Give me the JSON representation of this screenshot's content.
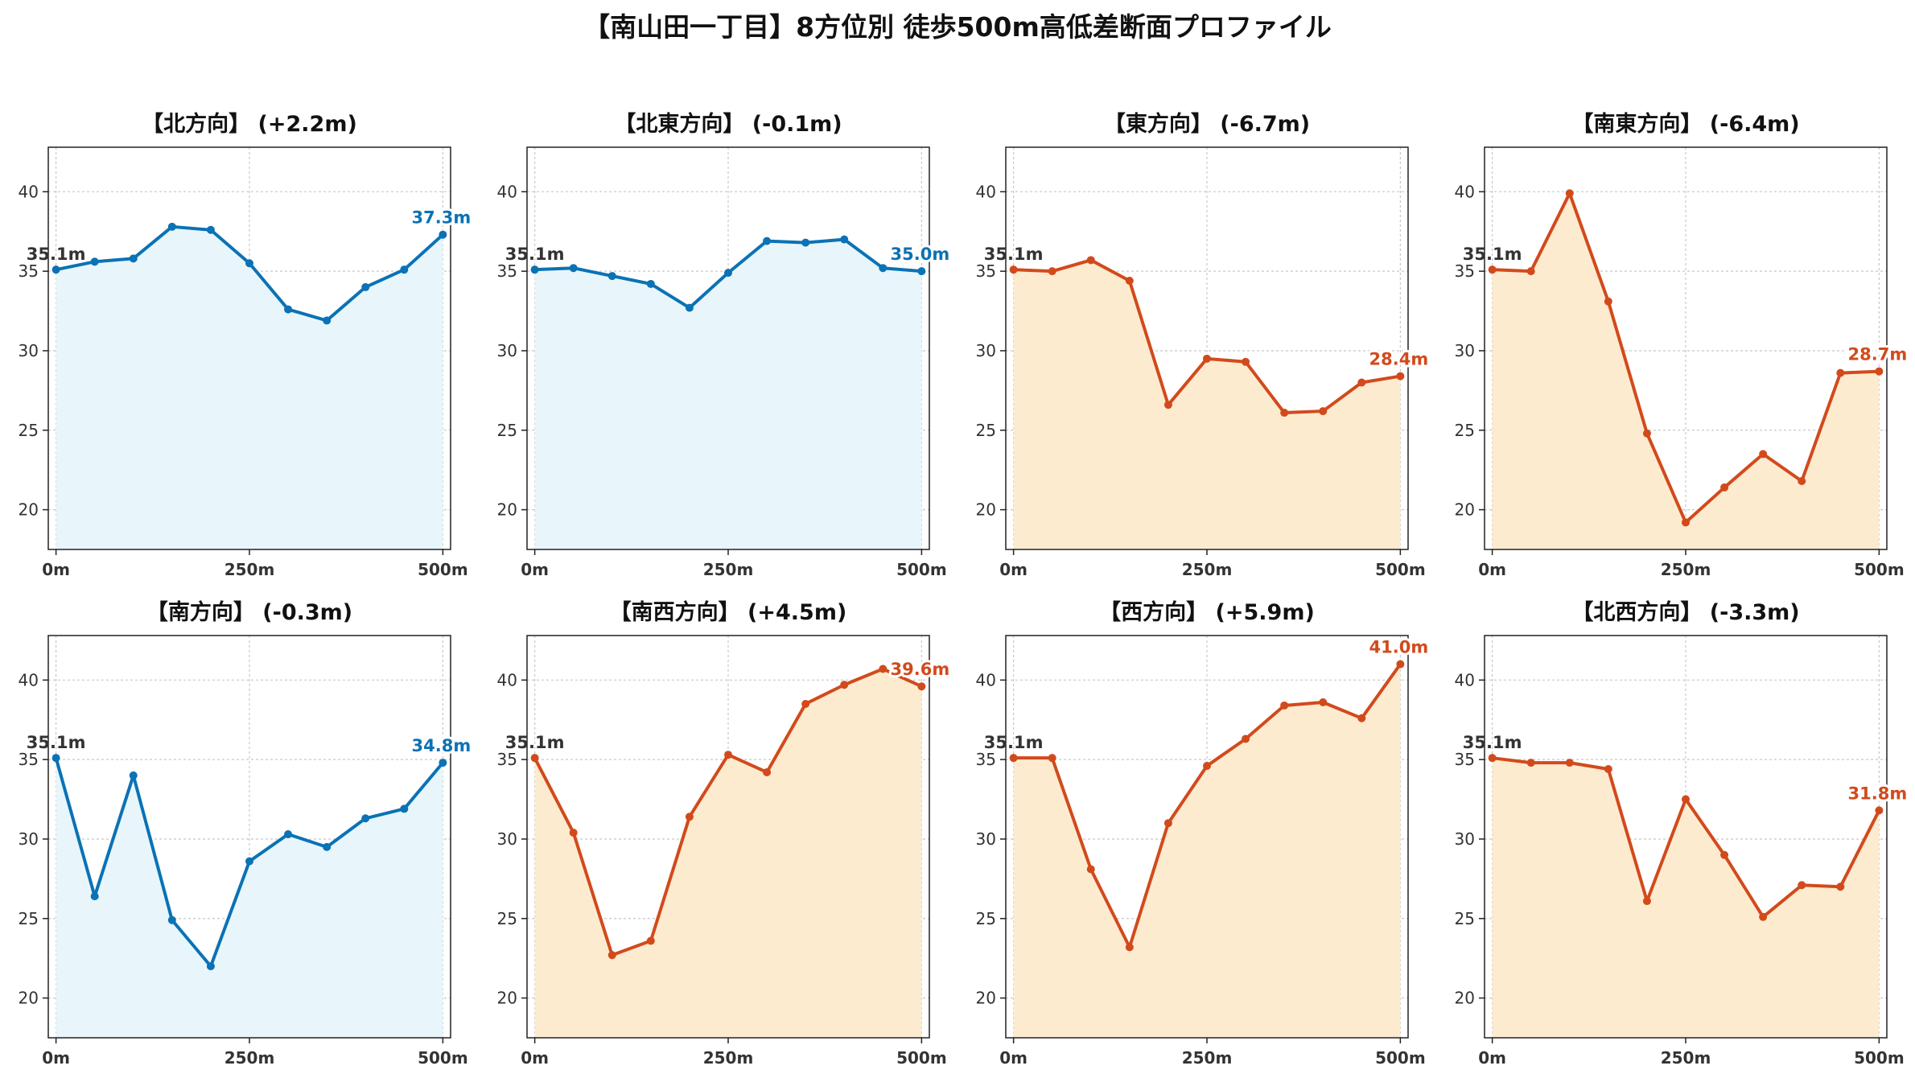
{
  "title": "【南山田一丁目】8方位別 徒歩500m高低差断面プロファイル",
  "colors": {
    "up": "#1f77b4",
    "up_line": "#0b72b5",
    "up_fill": "#e8f6fb",
    "down_line": "#d24a1c",
    "down_fill": "#fdebd0",
    "start_label": "#333333"
  },
  "chart_data": [
    {
      "type": "area",
      "title": "【北方向】 (+2.2m)",
      "trend": "up",
      "x": [
        0,
        50,
        100,
        150,
        200,
        250,
        300,
        350,
        400,
        450,
        500
      ],
      "y": [
        35.1,
        35.6,
        35.8,
        37.8,
        37.6,
        35.5,
        32.6,
        31.9,
        34.0,
        35.1,
        37.3
      ],
      "start_label": "35.1m",
      "end_label": "37.3m",
      "xticks": [
        "0m",
        "250m",
        "500m"
      ],
      "yticks": [
        "20",
        "25",
        "30",
        "35",
        "40"
      ],
      "ylim": [
        17.5,
        42.8
      ],
      "xlim": [
        -10,
        510
      ],
      "grid": true
    },
    {
      "type": "area",
      "title": "【北東方向】 (-0.1m)",
      "trend": "up",
      "x": [
        0,
        50,
        100,
        150,
        200,
        250,
        300,
        350,
        400,
        450,
        500
      ],
      "y": [
        35.1,
        35.2,
        34.7,
        34.2,
        32.7,
        34.9,
        36.9,
        36.8,
        37.0,
        35.2,
        35.0
      ],
      "start_label": "35.1m",
      "end_label": "35.0m",
      "xticks": [
        "0m",
        "250m",
        "500m"
      ],
      "yticks": [
        "20",
        "25",
        "30",
        "35",
        "40"
      ],
      "ylim": [
        17.5,
        42.8
      ],
      "xlim": [
        -10,
        510
      ],
      "grid": true
    },
    {
      "type": "area",
      "title": "【東方向】 (-6.7m)",
      "trend": "down",
      "x": [
        0,
        50,
        100,
        150,
        200,
        250,
        300,
        350,
        400,
        450,
        500
      ],
      "y": [
        35.1,
        35.0,
        35.7,
        34.4,
        26.6,
        29.5,
        29.3,
        26.1,
        26.2,
        28.0,
        28.4
      ],
      "start_label": "35.1m",
      "end_label": "28.4m",
      "xticks": [
        "0m",
        "250m",
        "500m"
      ],
      "yticks": [
        "20",
        "25",
        "30",
        "35",
        "40"
      ],
      "ylim": [
        17.5,
        42.8
      ],
      "xlim": [
        -10,
        510
      ],
      "grid": true
    },
    {
      "type": "area",
      "title": "【南東方向】 (-6.4m)",
      "trend": "down",
      "x": [
        0,
        50,
        100,
        150,
        200,
        250,
        300,
        350,
        400,
        450,
        500
      ],
      "y": [
        35.1,
        35.0,
        39.9,
        33.1,
        24.8,
        19.2,
        21.4,
        23.5,
        21.8,
        28.6,
        28.7
      ],
      "start_label": "35.1m",
      "end_label": "28.7m",
      "xticks": [
        "0m",
        "250m",
        "500m"
      ],
      "yticks": [
        "20",
        "25",
        "30",
        "35",
        "40"
      ],
      "ylim": [
        17.5,
        42.8
      ],
      "xlim": [
        -10,
        510
      ],
      "grid": true
    },
    {
      "type": "area",
      "title": "【南方向】 (-0.3m)",
      "trend": "up",
      "x": [
        0,
        50,
        100,
        150,
        200,
        250,
        300,
        350,
        400,
        450,
        500
      ],
      "y": [
        35.1,
        26.4,
        34.0,
        24.9,
        22.0,
        28.6,
        30.3,
        29.5,
        31.3,
        31.9,
        34.8
      ],
      "start_label": "35.1m",
      "end_label": "34.8m",
      "xticks": [
        "0m",
        "250m",
        "500m"
      ],
      "yticks": [
        "20",
        "25",
        "30",
        "35",
        "40"
      ],
      "ylim": [
        17.5,
        42.8
      ],
      "xlim": [
        -10,
        510
      ],
      "grid": true
    },
    {
      "type": "area",
      "title": "【南西方向】 (+4.5m)",
      "trend": "down",
      "x": [
        0,
        50,
        100,
        150,
        200,
        250,
        300,
        350,
        400,
        450,
        500
      ],
      "y": [
        35.1,
        30.4,
        22.7,
        23.6,
        31.4,
        35.3,
        34.2,
        38.5,
        39.7,
        40.7,
        39.6
      ],
      "start_label": "35.1m",
      "end_label": "39.6m",
      "xticks": [
        "0m",
        "250m",
        "500m"
      ],
      "yticks": [
        "20",
        "25",
        "30",
        "35",
        "40"
      ],
      "ylim": [
        17.5,
        42.8
      ],
      "xlim": [
        -10,
        510
      ],
      "grid": true
    },
    {
      "type": "area",
      "title": "【西方向】 (+5.9m)",
      "trend": "down",
      "x": [
        0,
        50,
        100,
        150,
        200,
        250,
        300,
        350,
        400,
        450,
        500
      ],
      "y": [
        35.1,
        35.1,
        28.1,
        23.2,
        31.0,
        34.6,
        36.3,
        38.4,
        38.6,
        37.6,
        41.0
      ],
      "start_label": "35.1m",
      "end_label": "41.0m",
      "xticks": [
        "0m",
        "250m",
        "500m"
      ],
      "yticks": [
        "20",
        "25",
        "30",
        "35",
        "40"
      ],
      "ylim": [
        17.5,
        42.8
      ],
      "xlim": [
        -10,
        510
      ],
      "grid": true
    },
    {
      "type": "area",
      "title": "【北西方向】 (-3.3m)",
      "trend": "down",
      "x": [
        0,
        50,
        100,
        150,
        200,
        250,
        300,
        350,
        400,
        450,
        500
      ],
      "y": [
        35.1,
        34.8,
        34.8,
        34.4,
        26.1,
        32.5,
        29.0,
        25.1,
        27.1,
        27.0,
        31.8
      ],
      "start_label": "35.1m",
      "end_label": "31.8m",
      "xticks": [
        "0m",
        "250m",
        "500m"
      ],
      "yticks": [
        "20",
        "25",
        "30",
        "35",
        "40"
      ],
      "ylim": [
        17.5,
        42.8
      ],
      "xlim": [
        -10,
        510
      ],
      "grid": true
    }
  ]
}
